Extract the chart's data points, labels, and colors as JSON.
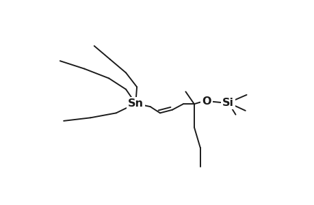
{
  "bg_color": "#ffffff",
  "line_color": "#1a1a1a",
  "line_width": 1.4,
  "font_size": 11.5,
  "sn": [
    0.395,
    0.515
  ],
  "o": [
    0.685,
    0.515
  ],
  "si": [
    0.775,
    0.505
  ]
}
